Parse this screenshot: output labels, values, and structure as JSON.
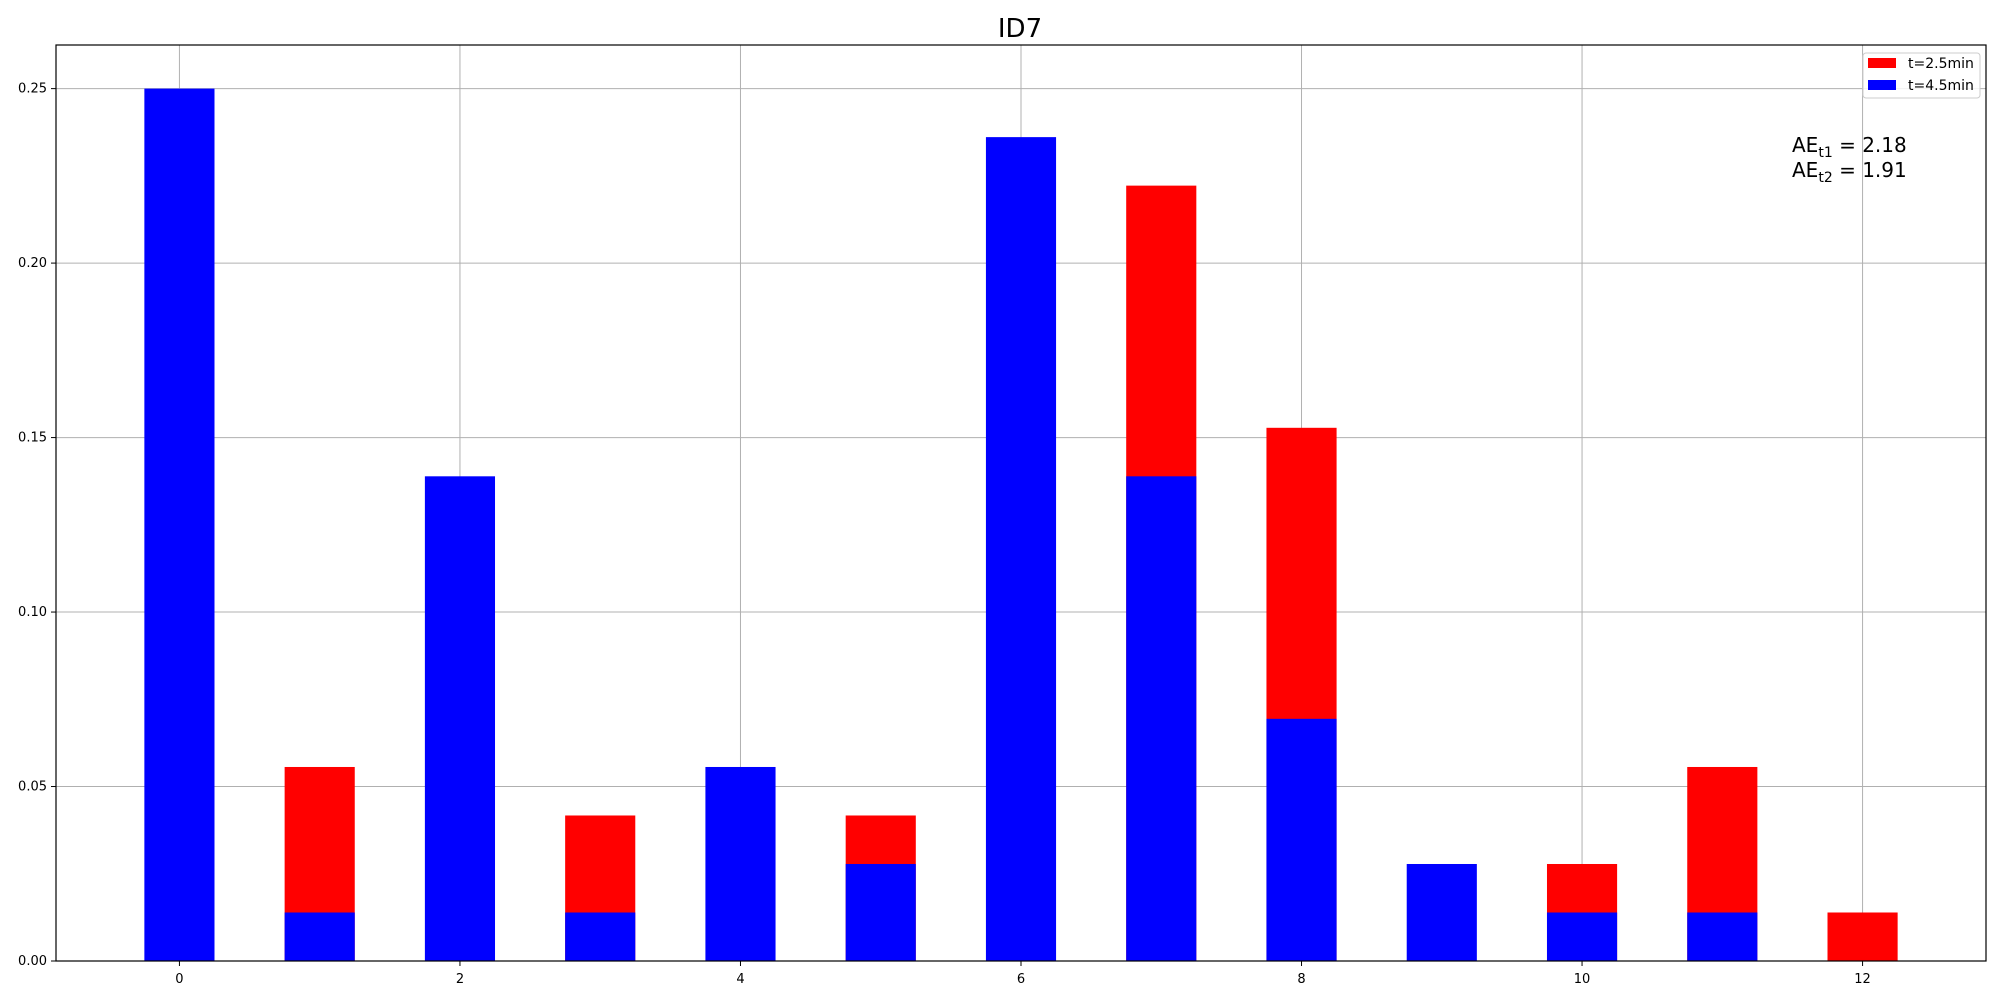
{
  "chart_data": {
    "type": "bar",
    "title": "ID7",
    "xlabel": "",
    "ylabel": "",
    "xlim": [
      -0.88,
      12.88
    ],
    "ylim": [
      0,
      0.2625
    ],
    "xticks": [
      0,
      2,
      4,
      6,
      8,
      10,
      12
    ],
    "xtick_labels": [
      "0",
      "2",
      "4",
      "6",
      "8",
      "10",
      "12"
    ],
    "yticks": [
      0,
      0.05,
      0.1,
      0.15,
      0.2,
      0.25
    ],
    "ytick_labels": [
      "0.00",
      "0.05",
      "0.10",
      "0.15",
      "0.20",
      "0.25"
    ],
    "grid": true,
    "legend_position": "top-right",
    "bar_width": 0.5,
    "categories": [
      0,
      1,
      2,
      3,
      4,
      5,
      6,
      7,
      8,
      9,
      10,
      11,
      12
    ],
    "series": [
      {
        "name": "t=2.5min",
        "color": "#ff0000",
        "values": [
          0.0,
          0.0556,
          0.0,
          0.0417,
          0.0,
          0.0417,
          0.0,
          0.2222,
          0.1528,
          0.0,
          0.0278,
          0.0556,
          0.0139
        ]
      },
      {
        "name": "t=4.5min",
        "color": "#0000ff",
        "values": [
          0.25,
          0.0139,
          0.1389,
          0.0139,
          0.0556,
          0.0278,
          0.2361,
          0.1389,
          0.0694,
          0.0278,
          0.0139,
          0.0139,
          0.0
        ]
      }
    ],
    "annotations": [
      {
        "base": "AE",
        "sub": "t1",
        "rest": " = 2.18"
      },
      {
        "base": "AE",
        "sub": "t2",
        "rest": " = 1.91"
      }
    ]
  }
}
